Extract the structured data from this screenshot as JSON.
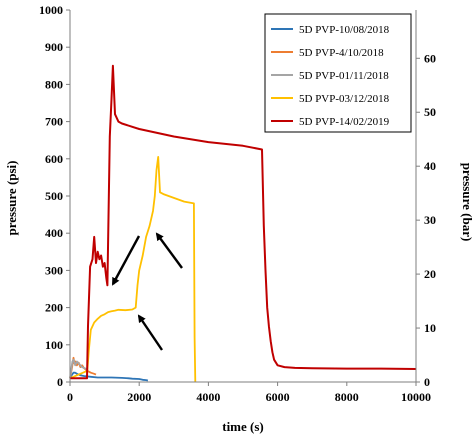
{
  "chart_data": {
    "type": "line",
    "title": "",
    "xlabel": "time (s)",
    "ylabel": "pressure (psi)",
    "ylabel_right": "pressure (bar)",
    "xlim": [
      0,
      10000
    ],
    "ylim": [
      0,
      1000
    ],
    "ylim_right": [
      0,
      68.95
    ],
    "x_ticks": [
      0,
      2000,
      4000,
      6000,
      8000,
      10000
    ],
    "x_tick_labels": [
      "0",
      "2000",
      "4000",
      "6000",
      "8000",
      "10000"
    ],
    "y_ticks": [
      0,
      100,
      200,
      300,
      400,
      500,
      600,
      700,
      800,
      900,
      1000
    ],
    "y_tick_labels": [
      "0",
      "100",
      "200",
      "300",
      "400",
      "500",
      "600",
      "700",
      "800",
      "900",
      "1000"
    ],
    "y_right_ticks": [
      0,
      10,
      20,
      30,
      40,
      50,
      60
    ],
    "y_right_tick_labels": [
      "0",
      "10",
      "20",
      "30",
      "40",
      "50",
      "60"
    ],
    "grid": false,
    "legend_position": "top-right",
    "series": [
      {
        "name": "5D PVP-10/08/2018",
        "color": "#2e75b6",
        "x": [
          0,
          60,
          100,
          150,
          200,
          250,
          300,
          400,
          600,
          800,
          1000,
          1200,
          1500,
          1700,
          1800,
          2000,
          2100,
          2200,
          2250
        ],
        "y": [
          10,
          20,
          25,
          25,
          22,
          20,
          18,
          16,
          14,
          12,
          12,
          12,
          11,
          10,
          9,
          8,
          6,
          5,
          4
        ]
      },
      {
        "name": "5D PVP-4/10/2018",
        "color": "#ed7d31",
        "x": [
          0,
          60,
          100,
          130,
          160,
          200,
          250,
          300,
          350,
          400,
          500,
          600,
          700,
          750
        ],
        "y": [
          10,
          40,
          65,
          50,
          55,
          45,
          52,
          40,
          45,
          38,
          30,
          25,
          22,
          20
        ]
      },
      {
        "name": "5D PVP-01/11/2018",
        "color": "#a5a5a5",
        "x": [
          0,
          70,
          100,
          150,
          200,
          250,
          300,
          350,
          400,
          450,
          500
        ],
        "y": [
          10,
          55,
          60,
          45,
          55,
          50,
          45,
          40,
          38,
          36,
          34
        ]
      },
      {
        "name": "5D PVP-03/12/2018",
        "color": "#ffc000",
        "x": [
          0,
          500,
          550,
          600,
          700,
          800,
          900,
          1000,
          1100,
          1200,
          1300,
          1400,
          1600,
          1800,
          1900,
          1950,
          2000,
          2100,
          2200,
          2300,
          2400,
          2450,
          2500,
          2550,
          2600,
          2700,
          3000,
          3300,
          3580,
          3600,
          3620
        ],
        "y": [
          10,
          30,
          90,
          140,
          160,
          170,
          178,
          182,
          188,
          190,
          192,
          194,
          193,
          195,
          200,
          260,
          300,
          340,
          390,
          420,
          460,
          500,
          570,
          605,
          510,
          505,
          495,
          485,
          480,
          120,
          0
        ]
      },
      {
        "name": "5D PVP-14/02/2019",
        "color": "#c00000",
        "x": [
          0,
          490,
          520,
          580,
          650,
          700,
          750,
          800,
          850,
          900,
          950,
          1000,
          1050,
          1080,
          1150,
          1200,
          1240,
          1300,
          1400,
          1500,
          2000,
          3000,
          4000,
          5000,
          5550,
          5600,
          5650,
          5700,
          5750,
          5800,
          5850,
          5900,
          6000,
          6200,
          6500,
          7000,
          8000,
          9000,
          10000
        ],
        "y": [
          10,
          10,
          150,
          310,
          330,
          390,
          320,
          350,
          330,
          340,
          310,
          320,
          280,
          260,
          660,
          760,
          850,
          720,
          700,
          695,
          680,
          660,
          645,
          635,
          625,
          420,
          300,
          200,
          150,
          110,
          80,
          60,
          45,
          40,
          38,
          37,
          36,
          36,
          35
        ]
      }
    ]
  }
}
